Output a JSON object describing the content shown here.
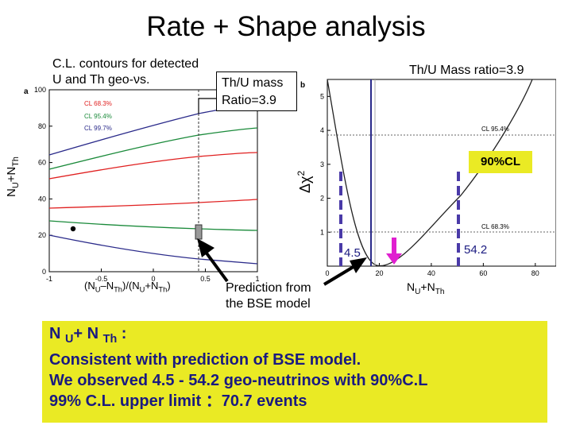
{
  "title": "Rate + Shape analysis",
  "left_panel": {
    "caption_line1": "C.L. contours for detected",
    "caption_line2": "U and Th geo-νs.",
    "panel_letter": "a",
    "ylabel_main": "N",
    "ylabel_sub1": "U",
    "ylabel_mid": "+N",
    "ylabel_sub2": "Th",
    "xlabel_part1": "(N",
    "xlabel_sub1": "U",
    "xlabel_part2": "–N",
    "xlabel_sub2": "Th",
    "xlabel_part3": ")/(N",
    "xlabel_sub3": "U",
    "xlabel_part4": "+N",
    "xlabel_sub4": "Th",
    "xlabel_part5": ")",
    "legend": [
      {
        "label": "CL 68.3%",
        "color": "#e02020"
      },
      {
        "label": "CL 95.4%",
        "color": "#1a8a3a"
      },
      {
        "label": "CL 99.7%",
        "color": "#2a2a8a"
      }
    ],
    "x_ticks": [
      "-1",
      "-0.5",
      "0",
      "0.5",
      "1"
    ],
    "y_ticks": [
      "0",
      "20",
      "40",
      "60",
      "80",
      "100"
    ]
  },
  "mass_box": {
    "line1": "Th/U mass",
    "line2": "Ratio=3.9"
  },
  "right_panel": {
    "top_label": "Th/U Mass ratio=3.9",
    "panel_letter": "b",
    "ylabel": "Δχ",
    "ylabel_sup": "2",
    "xlabel_main": "N",
    "xlabel_sub1": "U",
    "xlabel_mid": "+N",
    "xlabel_sub2": "Th",
    "cl_label_95": "CL 95.4%",
    "cl_label_68": "CL 68.3%",
    "ninety_box": "90%CL",
    "lower_value": "4.5",
    "upper_value": "54.2",
    "x_ticks": [
      "0",
      "20",
      "40",
      "60",
      "80"
    ],
    "y_ticks": [
      "1",
      "2",
      "3",
      "4",
      "5"
    ]
  },
  "prediction_label_line1": "Prediction from",
  "prediction_label_line2": "the BSE model",
  "conclusion": {
    "line1_a": "N ",
    "line1_sub1": "U",
    "line1_b": "+ N ",
    "line1_sub2": "Th",
    "line1_c": " :",
    "line2": "Consistent with prediction of BSE model.",
    "line3": "We observed 4.5 - 54.2 geo-neutrinos with 90%C.L",
    "line4": "99% C.L. upper limit ：70.7 events",
    "text_color": "#1a1a80",
    "background": "#eaea24"
  },
  "colors": {
    "purple_dash": "#4a3aa8",
    "magenta_arrow": "#e020d0"
  }
}
